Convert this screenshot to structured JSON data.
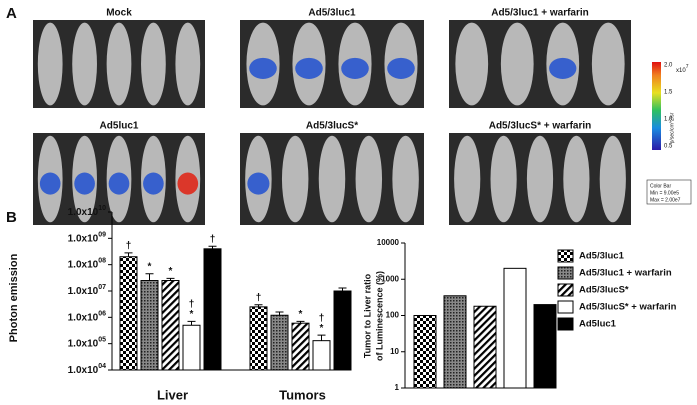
{
  "panel_a": {
    "label": "A",
    "images": [
      {
        "title": "Mock",
        "mice": 5
      },
      {
        "title": "Ad5/3luc1",
        "mice": 4
      },
      {
        "title": "Ad5/3luc1 + warfarin",
        "mice": 4
      },
      {
        "title": "Ad5luc1",
        "mice": 5
      },
      {
        "title": "Ad5/3lucS*",
        "mice": 5
      },
      {
        "title": "Ad5/3lucS* + warfarin",
        "mice": 5
      }
    ],
    "colorbar": {
      "ticks": [
        "2.0",
        "1.5",
        "1.0",
        "0.5"
      ],
      "multiplier": "x10",
      "multiplier_exp": "7",
      "unit": "p/sec/cm^2/sr",
      "box_title": "Color Bar",
      "min": "Min = 9.00e5",
      "max": "Max = 2.00e7"
    }
  },
  "chart_data": [
    {
      "type": "bar",
      "panel": "B",
      "ylabel": "Photon emission",
      "log": true,
      "categories": [
        "Liver",
        "Tumors"
      ],
      "ylim": [
        10000,
        10000000000
      ],
      "yticks": [
        {
          "value": 10000,
          "label": "1.0x10",
          "sup": "04"
        },
        {
          "value": 100000,
          "label": "1.0x10",
          "sup": "05"
        },
        {
          "value": 1000000,
          "label": "1.0x10",
          "sup": "06"
        },
        {
          "value": 10000000,
          "label": "1.0x10",
          "sup": "07"
        },
        {
          "value": 100000000,
          "label": "1.0x10",
          "sup": "08"
        },
        {
          "value": 1000000000,
          "label": "1.0x10",
          "sup": "09"
        },
        {
          "value": 10000000000,
          "label": "1.0x10",
          "sup": "10"
        }
      ],
      "series": [
        {
          "name": "Ad5/3luc1",
          "color": "#000000",
          "pattern": "checker",
          "values": [
            200000000,
            2500000
          ],
          "errors": [
            80000000,
            500000
          ],
          "annotations": [
            [
              "†"
            ],
            [
              "†"
            ]
          ]
        },
        {
          "name": "Ad5/3luc1 + warfarin",
          "color": "#555555",
          "pattern": "dots",
          "values": [
            25000000,
            1200000
          ],
          "errors": [
            20000000,
            400000
          ],
          "annotations": [
            [
              "*"
            ],
            null
          ]
        },
        {
          "name": "Ad5/3lucS*",
          "color": "#000000",
          "pattern": "diag",
          "values": [
            25000000,
            600000
          ],
          "errors": [
            5000000,
            100000
          ],
          "annotations": [
            [
              "*"
            ],
            [
              "*"
            ]
          ]
        },
        {
          "name": "Ad5/3lucS* + warfarin",
          "color": "#ffffff",
          "pattern": "none",
          "values": [
            500000,
            130000
          ],
          "errors": [
            200000,
            80000
          ],
          "annotations": [
            [
              "†",
              "*"
            ],
            [
              "†",
              "*"
            ]
          ]
        },
        {
          "name": "Ad5luc1",
          "color": "#000000",
          "pattern": "none",
          "values": [
            400000000,
            10000000
          ],
          "errors": [
            100000000,
            3000000
          ],
          "annotations": [
            [
              "†"
            ],
            null
          ]
        }
      ]
    },
    {
      "type": "bar",
      "panel": "C",
      "ylabel": [
        "Tumor to Liver ratio",
        "of Luminescence (%)"
      ],
      "log": true,
      "values": [
        100,
        350,
        180,
        2000,
        200
      ],
      "ylim": [
        1,
        10000
      ],
      "yticks": [
        1,
        10,
        100,
        1000,
        10000
      ]
    }
  ]
}
